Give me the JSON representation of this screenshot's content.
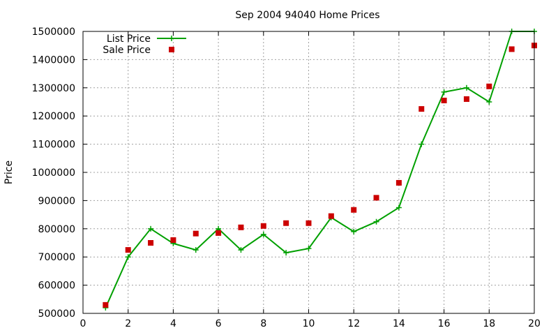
{
  "chart_data": {
    "type": "line",
    "title": "Sep 2004 94040 Home Prices",
    "xlabel": "",
    "ylabel": "Price",
    "xlim": [
      0,
      20
    ],
    "ylim": [
      500000,
      1500000
    ],
    "xticks": [
      "0",
      "2",
      "4",
      "6",
      "8",
      "10",
      "12",
      "14",
      "16",
      "18",
      "20"
    ],
    "yticks": [
      "500000",
      "600000",
      "700000",
      "800000",
      "900000",
      "1000000",
      "1100000",
      "1200000",
      "1300000",
      "1400000",
      "1500000"
    ],
    "grid": true,
    "legend_position": "top-left",
    "series": [
      {
        "name": "List Price",
        "style": "line+cross",
        "color": "#00a000",
        "x": [
          1,
          2,
          3,
          4,
          5,
          6,
          7,
          8,
          9,
          10,
          11,
          12,
          13,
          14,
          15,
          16,
          17,
          18,
          19,
          20
        ],
        "y": [
          520000,
          700000,
          800000,
          748000,
          725000,
          800000,
          725000,
          780000,
          715000,
          730000,
          840000,
          790000,
          825000,
          875000,
          1100000,
          1285000,
          1300000,
          1250000,
          1500000,
          1500000
        ]
      },
      {
        "name": "Sale Price",
        "style": "square",
        "color": "#cc0000",
        "x": [
          1,
          2,
          3,
          4,
          5,
          6,
          7,
          8,
          9,
          10,
          11,
          12,
          13,
          14,
          15,
          16,
          17,
          18,
          19,
          20
        ],
        "y": [
          530000,
          725000,
          750000,
          760000,
          783000,
          785000,
          805000,
          810000,
          820000,
          820000,
          845000,
          867000,
          910000,
          963000,
          1225000,
          1255000,
          1260000,
          1305000,
          1437000,
          1450000
        ]
      }
    ]
  }
}
